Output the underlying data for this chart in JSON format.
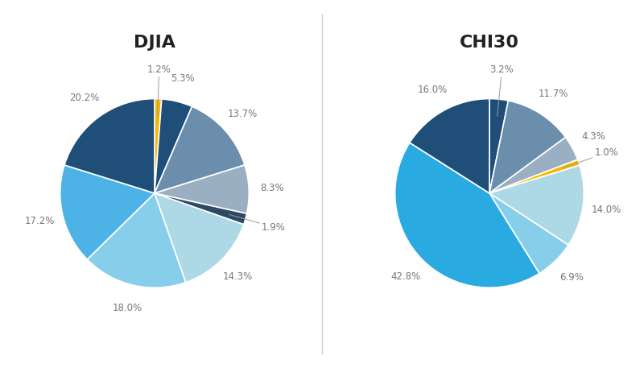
{
  "djia": {
    "title": "DJIA",
    "values": [
      1.2,
      5.3,
      13.7,
      8.3,
      1.9,
      14.3,
      18.0,
      17.2,
      20.2
    ],
    "colors": [
      "#F5B800",
      "#1F4E79",
      "#6B8EAD",
      "#9BAFC2",
      "#2D4A62",
      "#ADD8E6",
      "#87CEEB",
      "#4DB3E6",
      "#1F4E79"
    ],
    "labels": [
      "1.2%",
      "5.3%",
      "13.7%",
      "8.3%",
      "1.9%",
      "14.3%",
      "18.0%",
      "17.2%",
      "20.2%"
    ],
    "label_pcts": [
      1.2,
      5.3,
      13.7,
      8.3,
      1.9,
      14.3,
      18.0,
      17.2,
      20.2
    ]
  },
  "chi30": {
    "title": "CHI30",
    "values": [
      3.2,
      11.7,
      4.3,
      1.0,
      14.0,
      6.9,
      42.8,
      16.0
    ],
    "colors": [
      "#1F4E79",
      "#6B8EAD",
      "#9BAFC2",
      "#F5B800",
      "#ADD8E6",
      "#87CEEB",
      "#29ABE2",
      "#1F4E79"
    ],
    "labels": [
      "3.2%",
      "11.7%",
      "4.3%",
      "1.0%",
      "14.0%",
      "6.9%",
      "42.8%",
      "16.0%"
    ],
    "label_pcts": [
      3.2,
      11.7,
      4.3,
      1.0,
      14.0,
      6.9,
      42.8,
      16.0
    ]
  },
  "bg_color": "#FFFFFF",
  "text_color": "#777777",
  "title_fontsize": 16,
  "label_fontsize": 8.5,
  "divider_color": "#CCCCCC",
  "startangle": 90
}
